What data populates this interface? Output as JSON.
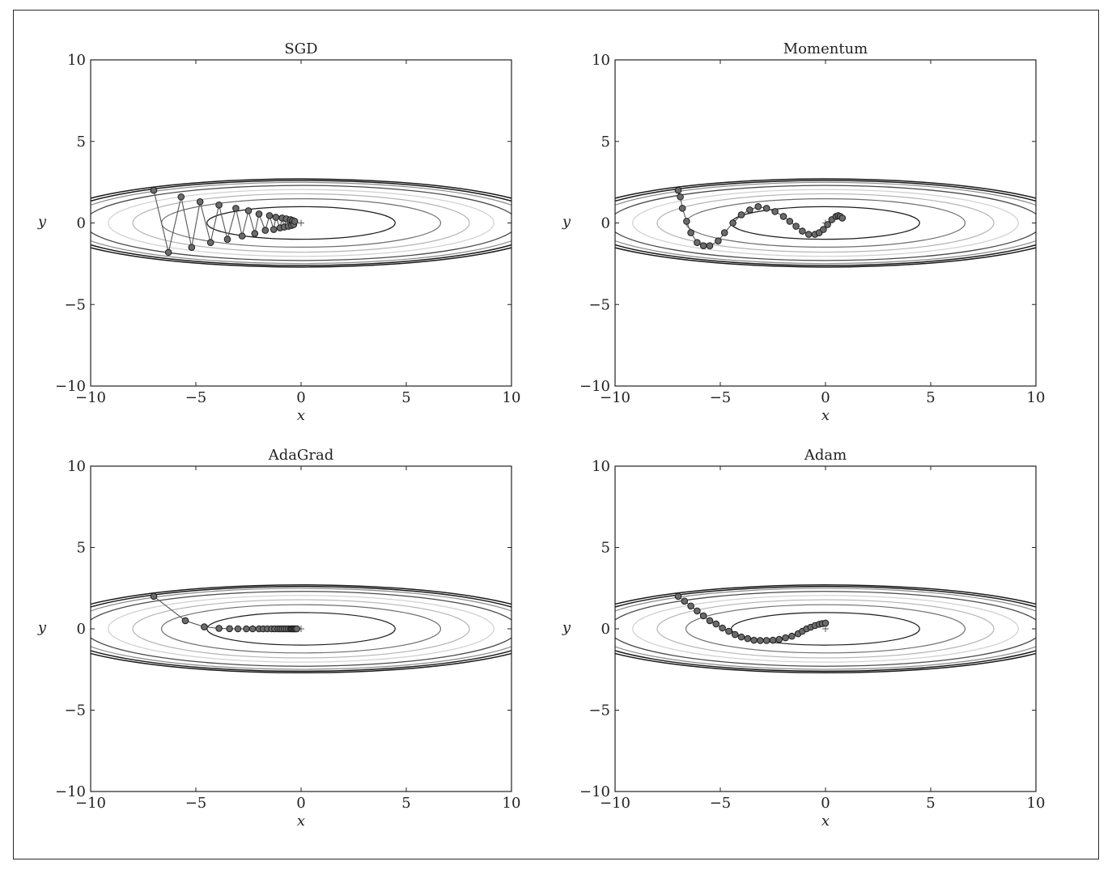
{
  "chart_data": [
    {
      "type": "line",
      "title": "SGD",
      "xlabel": "x",
      "ylabel": "y",
      "xlim": [
        -10,
        10
      ],
      "ylim": [
        -10,
        10
      ],
      "xticks": [
        "−10",
        "−5",
        "0",
        "5",
        "10"
      ],
      "yticks": [
        "10",
        "5",
        "0",
        "−5",
        "−10"
      ],
      "contours": true,
      "minimum_marker": [
        0,
        0
      ],
      "series": [
        {
          "x": [
            -7.0,
            -6.3,
            -5.7,
            -5.2,
            -4.8,
            -4.3,
            -3.9,
            -3.5,
            -3.1,
            -2.8,
            -2.5,
            -2.2,
            -2.0,
            -1.7,
            -1.5,
            -1.3,
            -1.2,
            -1.0,
            -0.9,
            -0.8,
            -0.7,
            -0.6,
            -0.5,
            -0.45,
            -0.4,
            -0.35,
            -0.3
          ],
          "y": [
            2.0,
            -1.8,
            1.6,
            -1.5,
            1.3,
            -1.2,
            1.1,
            -1.0,
            0.9,
            -0.8,
            0.75,
            -0.65,
            0.55,
            -0.45,
            0.45,
            -0.4,
            0.35,
            -0.3,
            0.3,
            -0.25,
            0.25,
            -0.2,
            0.2,
            -0.15,
            0.15,
            -0.1,
            0.1
          ]
        }
      ]
    },
    {
      "type": "line",
      "title": "Momentum",
      "xlabel": "x",
      "ylabel": "y",
      "xlim": [
        -10,
        10
      ],
      "ylim": [
        -10,
        10
      ],
      "xticks": [
        "−10",
        "−5",
        "0",
        "5",
        "10"
      ],
      "yticks": [
        "10",
        "5",
        "0",
        "−5",
        "−10"
      ],
      "contours": true,
      "minimum_marker": [
        0,
        0
      ],
      "series": [
        {
          "x": [
            -7.0,
            -6.9,
            -6.8,
            -6.6,
            -6.4,
            -6.1,
            -5.8,
            -5.5,
            -5.1,
            -4.8,
            -4.4,
            -4.0,
            -3.6,
            -3.2,
            -2.8,
            -2.4,
            -2.0,
            -1.7,
            -1.4,
            -1.1,
            -0.8,
            -0.5,
            -0.3,
            -0.1,
            0.1,
            0.3,
            0.5,
            0.6,
            0.7,
            0.8
          ],
          "y": [
            2.0,
            1.6,
            0.9,
            0.1,
            -0.6,
            -1.2,
            -1.4,
            -1.4,
            -1.1,
            -0.6,
            0.0,
            0.5,
            0.8,
            1.0,
            0.9,
            0.7,
            0.4,
            0.1,
            -0.2,
            -0.5,
            -0.7,
            -0.7,
            -0.6,
            -0.4,
            -0.1,
            0.2,
            0.4,
            0.45,
            0.4,
            0.3
          ]
        }
      ]
    },
    {
      "type": "line",
      "title": "AdaGrad",
      "xlabel": "x",
      "ylabel": "y",
      "xlim": [
        -10,
        10
      ],
      "ylim": [
        -10,
        10
      ],
      "xticks": [
        "−10",
        "−5",
        "0",
        "5",
        "10"
      ],
      "yticks": [
        "10",
        "5",
        "0",
        "−5",
        "−10"
      ],
      "contours": true,
      "minimum_marker": [
        0,
        0
      ],
      "series": [
        {
          "x": [
            -7.0,
            -5.5,
            -4.6,
            -3.9,
            -3.4,
            -3.0,
            -2.6,
            -2.3,
            -2.0,
            -1.8,
            -1.6,
            -1.4,
            -1.25,
            -1.1,
            -1.0,
            -0.9,
            -0.8,
            -0.7,
            -0.6,
            -0.5,
            -0.45,
            -0.4,
            -0.35,
            -0.3,
            -0.25,
            -0.2
          ],
          "y": [
            2.0,
            0.5,
            0.12,
            0.03,
            0.01,
            0.0,
            0.0,
            0.0,
            0.0,
            0.0,
            0.0,
            0.0,
            0.0,
            0.0,
            0.0,
            0.0,
            0.0,
            0.0,
            0.0,
            0.0,
            0.0,
            0.0,
            0.0,
            0.0,
            0.0,
            0.0
          ]
        }
      ]
    },
    {
      "type": "line",
      "title": "Adam",
      "xlabel": "x",
      "ylabel": "y",
      "xlim": [
        -10,
        10
      ],
      "ylim": [
        -10,
        10
      ],
      "xticks": [
        "−10",
        "−5",
        "0",
        "5",
        "10"
      ],
      "yticks": [
        "10",
        "5",
        "0",
        "−5",
        "−10"
      ],
      "contours": true,
      "minimum_marker": [
        0,
        0
      ],
      "series": [
        {
          "x": [
            -7.0,
            -6.7,
            -6.4,
            -6.1,
            -5.8,
            -5.5,
            -5.2,
            -4.9,
            -4.6,
            -4.3,
            -4.0,
            -3.7,
            -3.4,
            -3.1,
            -2.8,
            -2.5,
            -2.2,
            -1.9,
            -1.6,
            -1.3,
            -1.1,
            -0.9,
            -0.7,
            -0.5,
            -0.3,
            -0.15,
            0.0
          ],
          "y": [
            2.0,
            1.7,
            1.4,
            1.1,
            0.8,
            0.5,
            0.3,
            0.05,
            -0.15,
            -0.35,
            -0.5,
            -0.6,
            -0.7,
            -0.72,
            -0.72,
            -0.7,
            -0.65,
            -0.55,
            -0.45,
            -0.3,
            -0.15,
            0.0,
            0.1,
            0.2,
            0.28,
            0.32,
            0.35
          ]
        }
      ]
    }
  ]
}
